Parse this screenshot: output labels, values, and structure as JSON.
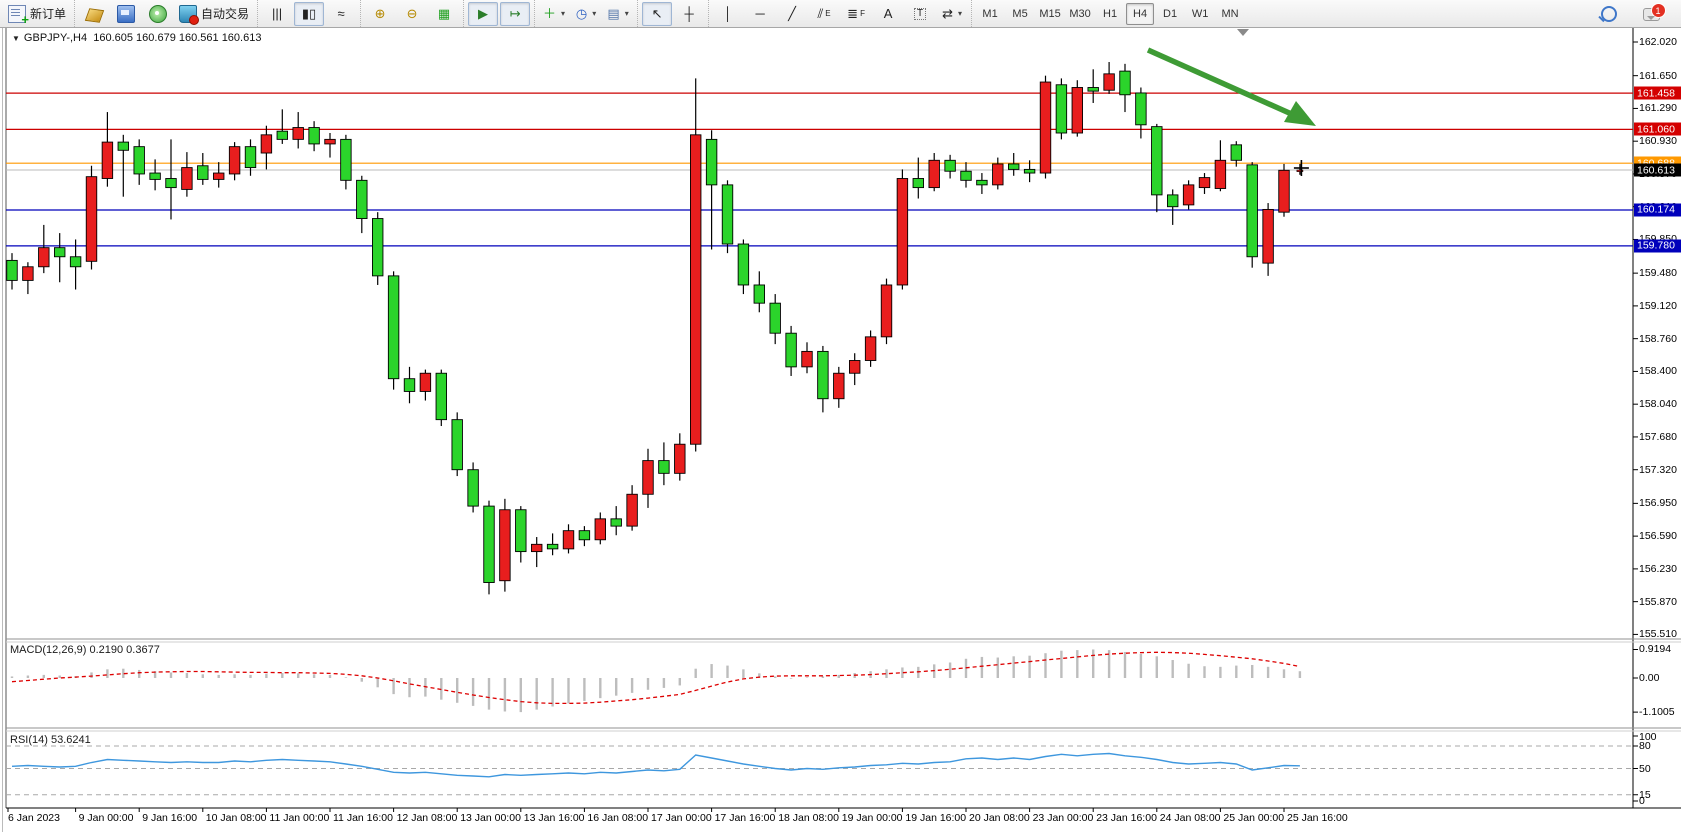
{
  "toolbar": {
    "groups": [
      {
        "name": "order-group",
        "items": [
          {
            "name": "new-order-button",
            "art": "new-order",
            "label": "新订单"
          }
        ]
      },
      {
        "name": "app-group",
        "items": [
          {
            "name": "terminal-icon",
            "art": "gold-box"
          },
          {
            "name": "metaeditor-icon",
            "art": "blue-pc"
          },
          {
            "name": "signals-icon",
            "art": "green-signal"
          },
          {
            "name": "autotrading-button",
            "art": "bucket",
            "label": "自动交易"
          }
        ]
      },
      {
        "name": "chart-type-group",
        "items": [
          {
            "name": "bars-chart-button",
            "glyph": "|||"
          },
          {
            "name": "candles-chart-button",
            "glyph": "▮▯",
            "pressed": true
          },
          {
            "name": "line-chart-button",
            "glyph": "≈"
          }
        ]
      },
      {
        "name": "zoom-group",
        "items": [
          {
            "name": "zoom-in-button",
            "glyph": "⊕",
            "color": "#b58900"
          },
          {
            "name": "zoom-out-button",
            "glyph": "⊖",
            "color": "#b58900"
          },
          {
            "name": "tile-windows-button",
            "glyph": "▦",
            "color": "#1fa01f"
          }
        ]
      },
      {
        "name": "scroll-group",
        "items": [
          {
            "name": "auto-scroll-button",
            "glyph": "▶",
            "pressed": true,
            "color": "#2a7d2a"
          },
          {
            "name": "chart-shift-button",
            "glyph": "↦",
            "pressed": true,
            "color": "#2a7d2a"
          }
        ]
      },
      {
        "name": "insert-group",
        "items": [
          {
            "name": "indicators-button",
            "glyph": "＋",
            "color": "#1fa01f",
            "dropdown": true
          },
          {
            "name": "periods-clock-button",
            "glyph": "◷",
            "color": "#2b5fc0",
            "dropdown": true
          },
          {
            "name": "templates-button",
            "glyph": "▤",
            "color": "#5577aa",
            "dropdown": true
          }
        ]
      },
      {
        "name": "cursor-group",
        "items": [
          {
            "name": "cursor-button",
            "glyph": "↖",
            "pressed": true
          },
          {
            "name": "crosshair-button",
            "glyph": "┼"
          }
        ]
      },
      {
        "name": "objects-group",
        "items": [
          {
            "name": "vertical-line-button",
            "glyph": "│"
          },
          {
            "name": "horizontal-line-button",
            "glyph": "─"
          },
          {
            "name": "trendline-button",
            "glyph": "╱"
          },
          {
            "name": "equidistant-channel-button",
            "glyph": "⫽",
            "sub": "E"
          },
          {
            "name": "fibonacci-button",
            "glyph": "≣",
            "sub": "F"
          },
          {
            "name": "text-button",
            "glyph": "A"
          },
          {
            "name": "text-label-button",
            "glyph": "T",
            "boxed": true
          },
          {
            "name": "arrows-button",
            "glyph": "⇄",
            "dropdown": true
          }
        ]
      },
      {
        "name": "timeframes-group",
        "timeframes": [
          "M1",
          "M5",
          "M15",
          "M30",
          "H1",
          "H4",
          "D1",
          "W1",
          "MN"
        ],
        "active": "H4"
      }
    ],
    "right": [
      {
        "name": "search-button",
        "art": "magnifier"
      },
      {
        "name": "chat-button",
        "art": "chat",
        "badge": "1"
      }
    ]
  },
  "chart": {
    "symbol_period": "GBPJPY-,H4",
    "ohlc_text": "160.605 160.679 160.561 160.613",
    "collapse_glyph": "▼"
  },
  "panels": {
    "macd_title": "MACD(12,26,9)",
    "macd_values": "0.2190 0.3677",
    "rsi_title": "RSI(14)",
    "rsi_value": "53.6241"
  },
  "chart_data": {
    "type": "candlestick",
    "symbol": "GBPJPY-",
    "timeframe": "H4",
    "color_convention": {
      "bull": "#e81e1e",
      "bear": "#2bd42b",
      "note_colors_meaning": "red=up, green=down"
    },
    "price_ticks": [
      "162.020",
      "161.650",
      "161.290",
      "160.930",
      "160.570",
      "160.210",
      "159.850",
      "159.480",
      "159.120",
      "158.760",
      "158.400",
      "158.040",
      "157.680",
      "157.320",
      "156.950",
      "156.590",
      "156.230",
      "155.870",
      "155.510"
    ],
    "level_badges": [
      {
        "label": "161.458",
        "price": 161.458,
        "bg": "#d40000"
      },
      {
        "label": "161.060",
        "price": 161.06,
        "bg": "#d40000"
      },
      {
        "label": "160.688",
        "price": 160.688,
        "bg": "#ff9900"
      },
      {
        "label": "160.613",
        "price": 160.613,
        "bg": "#000000"
      },
      {
        "label": "160.174",
        "price": 160.174,
        "bg": "#0000bb"
      },
      {
        "label": "159.780",
        "price": 159.78,
        "bg": "#0000bb"
      }
    ],
    "hlines": [
      {
        "price": 161.458,
        "color": "#cc0000"
      },
      {
        "price": 161.06,
        "color": "#cc0000"
      },
      {
        "price": 160.688,
        "color": "#ff9900"
      },
      {
        "price": 160.613,
        "color": "#bbbbbb"
      },
      {
        "price": 160.174,
        "color": "#0000bb"
      },
      {
        "price": 159.78,
        "color": "#0000bb"
      }
    ],
    "candles_ohlc": [
      [
        159.62,
        159.7,
        159.3,
        159.4
      ],
      [
        159.4,
        159.6,
        159.25,
        159.55
      ],
      [
        159.55,
        160.01,
        159.48,
        159.76
      ],
      [
        159.76,
        159.92,
        159.38,
        159.66
      ],
      [
        159.66,
        159.85,
        159.3,
        159.55
      ],
      [
        159.61,
        160.66,
        159.52,
        160.54
      ],
      [
        160.52,
        161.25,
        160.43,
        160.92
      ],
      [
        160.92,
        161.0,
        160.32,
        160.83
      ],
      [
        160.87,
        160.95,
        160.45,
        160.57
      ],
      [
        160.58,
        160.73,
        160.39,
        160.51
      ],
      [
        160.52,
        160.95,
        160.07,
        160.42
      ],
      [
        160.4,
        160.81,
        160.32,
        160.64
      ],
      [
        160.66,
        160.8,
        160.45,
        160.51
      ],
      [
        160.51,
        160.7,
        160.42,
        160.58
      ],
      [
        160.57,
        160.92,
        160.5,
        160.87
      ],
      [
        160.87,
        160.95,
        160.55,
        160.64
      ],
      [
        160.8,
        161.1,
        160.62,
        161.0
      ],
      [
        161.04,
        161.28,
        160.9,
        160.95
      ],
      [
        160.95,
        161.25,
        160.85,
        161.08
      ],
      [
        161.08,
        161.15,
        160.82,
        160.9
      ],
      [
        160.9,
        161.02,
        160.75,
        160.95
      ],
      [
        160.95,
        161.0,
        160.4,
        160.5
      ],
      [
        160.5,
        160.55,
        159.92,
        160.08
      ],
      [
        160.08,
        160.15,
        159.35,
        159.45
      ],
      [
        159.45,
        159.5,
        158.2,
        158.32
      ],
      [
        158.32,
        158.45,
        158.05,
        158.18
      ],
      [
        158.18,
        158.42,
        158.08,
        158.38
      ],
      [
        158.38,
        158.42,
        157.8,
        157.87
      ],
      [
        157.87,
        157.95,
        157.25,
        157.32
      ],
      [
        157.32,
        157.4,
        156.85,
        156.92
      ],
      [
        156.92,
        156.98,
        155.95,
        156.08
      ],
      [
        156.1,
        157.0,
        155.98,
        156.88
      ],
      [
        156.88,
        156.92,
        156.3,
        156.42
      ],
      [
        156.42,
        156.58,
        156.25,
        156.5
      ],
      [
        156.5,
        156.62,
        156.38,
        156.45
      ],
      [
        156.45,
        156.72,
        156.4,
        156.65
      ],
      [
        156.65,
        156.7,
        156.48,
        156.55
      ],
      [
        156.55,
        156.85,
        156.5,
        156.78
      ],
      [
        156.78,
        156.92,
        156.6,
        156.7
      ],
      [
        156.7,
        157.15,
        156.65,
        157.05
      ],
      [
        157.05,
        157.55,
        156.9,
        157.42
      ],
      [
        157.42,
        157.62,
        157.15,
        157.28
      ],
      [
        157.28,
        157.72,
        157.2,
        157.6
      ],
      [
        157.6,
        161.62,
        157.52,
        161.0
      ],
      [
        160.95,
        161.05,
        159.74,
        160.45
      ],
      [
        160.45,
        160.5,
        159.7,
        159.8
      ],
      [
        159.8,
        159.85,
        159.25,
        159.35
      ],
      [
        159.35,
        159.5,
        159.05,
        159.15
      ],
      [
        159.15,
        159.25,
        158.7,
        158.82
      ],
      [
        158.82,
        158.9,
        158.35,
        158.45
      ],
      [
        158.45,
        158.72,
        158.38,
        158.62
      ],
      [
        158.62,
        158.68,
        157.95,
        158.1
      ],
      [
        158.1,
        158.45,
        158.0,
        158.38
      ],
      [
        158.38,
        158.6,
        158.25,
        158.52
      ],
      [
        158.52,
        158.85,
        158.45,
        158.78
      ],
      [
        158.78,
        159.42,
        158.7,
        159.35
      ],
      [
        159.35,
        160.62,
        159.3,
        160.52
      ],
      [
        160.52,
        160.75,
        160.3,
        160.42
      ],
      [
        160.42,
        160.8,
        160.38,
        160.72
      ],
      [
        160.72,
        160.78,
        160.52,
        160.6
      ],
      [
        160.6,
        160.7,
        160.42,
        160.5
      ],
      [
        160.5,
        160.58,
        160.35,
        160.45
      ],
      [
        160.45,
        160.75,
        160.4,
        160.68
      ],
      [
        160.68,
        160.8,
        160.55,
        160.62
      ],
      [
        160.62,
        160.72,
        160.48,
        160.58
      ],
      [
        160.58,
        161.65,
        160.52,
        161.58
      ],
      [
        161.55,
        161.62,
        160.95,
        161.02
      ],
      [
        161.02,
        161.6,
        160.98,
        161.52
      ],
      [
        161.52,
        161.72,
        161.35,
        161.48
      ],
      [
        161.49,
        161.8,
        161.45,
        161.67
      ],
      [
        161.7,
        161.78,
        161.25,
        161.44
      ],
      [
        161.46,
        161.52,
        160.96,
        161.11
      ],
      [
        161.09,
        161.12,
        160.15,
        160.34
      ],
      [
        160.34,
        160.4,
        160.01,
        160.21
      ],
      [
        160.23,
        160.5,
        160.18,
        160.45
      ],
      [
        160.42,
        160.58,
        160.35,
        160.53
      ],
      [
        160.41,
        160.94,
        160.38,
        160.72
      ],
      [
        160.89,
        160.93,
        160.65,
        160.72
      ],
      [
        160.67,
        160.7,
        159.54,
        159.66
      ],
      [
        159.59,
        160.25,
        159.45,
        160.18
      ],
      [
        160.15,
        160.68,
        160.1,
        160.61
      ]
    ],
    "forming_bar": [
      160.605,
      160.679,
      160.561,
      160.613
    ],
    "macd": {
      "ticks": [
        "0.9194",
        "0.00",
        "-1.1005"
      ],
      "histogram": [
        0.05,
        0.08,
        0.1,
        0.08,
        0.06,
        0.18,
        0.28,
        0.3,
        0.26,
        0.22,
        0.18,
        0.16,
        0.12,
        0.1,
        0.12,
        0.1,
        0.14,
        0.16,
        0.15,
        0.12,
        0.1,
        0.02,
        -0.12,
        -0.3,
        -0.52,
        -0.62,
        -0.6,
        -0.7,
        -0.8,
        -0.9,
        -1.02,
        -1.08,
        -1.1,
        -1.02,
        -0.92,
        -0.82,
        -0.74,
        -0.65,
        -0.57,
        -0.48,
        -0.38,
        -0.32,
        -0.24,
        0.3,
        0.45,
        0.4,
        0.28,
        0.15,
        0.05,
        -0.02,
        0.02,
        0.05,
        0.1,
        0.16,
        0.22,
        0.28,
        0.34,
        0.36,
        0.44,
        0.5,
        0.62,
        0.68,
        0.66,
        0.7,
        0.72,
        0.8,
        0.88,
        0.9,
        0.92,
        0.9,
        0.84,
        0.78,
        0.7,
        0.58,
        0.46,
        0.38,
        0.36,
        0.4,
        0.42,
        0.36,
        0.28,
        0.219
      ],
      "signal": [
        -0.12,
        -0.08,
        -0.04,
        0.0,
        0.03,
        0.06,
        0.1,
        0.14,
        0.17,
        0.19,
        0.2,
        0.21,
        0.21,
        0.2,
        0.19,
        0.18,
        0.18,
        0.17,
        0.17,
        0.16,
        0.15,
        0.12,
        0.07,
        0.0,
        -0.09,
        -0.19,
        -0.28,
        -0.37,
        -0.46,
        -0.55,
        -0.63,
        -0.7,
        -0.76,
        -0.8,
        -0.82,
        -0.82,
        -0.81,
        -0.78,
        -0.74,
        -0.7,
        -0.65,
        -0.59,
        -0.53,
        -0.4,
        -0.26,
        -0.13,
        -0.03,
        0.03,
        0.06,
        0.07,
        0.07,
        0.07,
        0.08,
        0.09,
        0.11,
        0.14,
        0.17,
        0.2,
        0.24,
        0.28,
        0.33,
        0.38,
        0.43,
        0.48,
        0.53,
        0.58,
        0.63,
        0.68,
        0.73,
        0.77,
        0.8,
        0.82,
        0.83,
        0.82,
        0.8,
        0.76,
        0.72,
        0.67,
        0.62,
        0.55,
        0.47,
        0.3677
      ],
      "hist_color": "#bdbdbd",
      "signal_color": "#dd0000"
    },
    "rsi": {
      "ticks": [
        "100",
        "80",
        "50",
        "15",
        "0"
      ],
      "levels": [
        80,
        50,
        15
      ],
      "values": [
        53,
        54,
        53,
        52,
        53,
        58,
        62,
        61,
        60,
        59,
        58,
        59,
        58,
        58,
        60,
        59,
        61,
        62,
        61,
        60,
        59,
        56,
        53,
        49,
        45,
        44,
        45,
        43,
        41,
        40,
        39,
        42,
        41,
        42,
        43,
        44,
        43,
        45,
        44,
        46,
        48,
        47,
        49,
        68,
        64,
        60,
        56,
        53,
        50,
        48,
        50,
        49,
        51,
        52,
        54,
        55,
        57,
        56,
        58,
        59,
        63,
        64,
        62,
        64,
        62,
        66,
        69,
        67,
        69,
        70,
        67,
        65,
        62,
        58,
        56,
        57,
        58,
        56,
        48,
        51,
        54,
        53.6241
      ],
      "line_color": "#3e97de",
      "level_color": "#a8a8a8"
    },
    "time_labels": [
      "6 Jan 2023",
      "9 Jan 00:00",
      "9 Jan 16:00",
      "10 Jan 08:00",
      "11 Jan 00:00",
      "11 Jan 16:00",
      "12 Jan 08:00",
      "13 Jan 00:00",
      "13 Jan 16:00",
      "16 Jan 08:00",
      "17 Jan 00:00",
      "17 Jan 16:00",
      "18 Jan 08:00",
      "19 Jan 00:00",
      "19 Jan 16:00",
      "20 Jan 08:00",
      "23 Jan 00:00",
      "23 Jan 16:00",
      "24 Jan 08:00",
      "25 Jan 00:00",
      "25 Jan 16:00"
    ],
    "annotation_arrow": {
      "color": "#3e9b35",
      "from_price": 162.0,
      "to_price": 161.1,
      "meaning": "down-arrow pointing to 161.060 resistance"
    }
  }
}
